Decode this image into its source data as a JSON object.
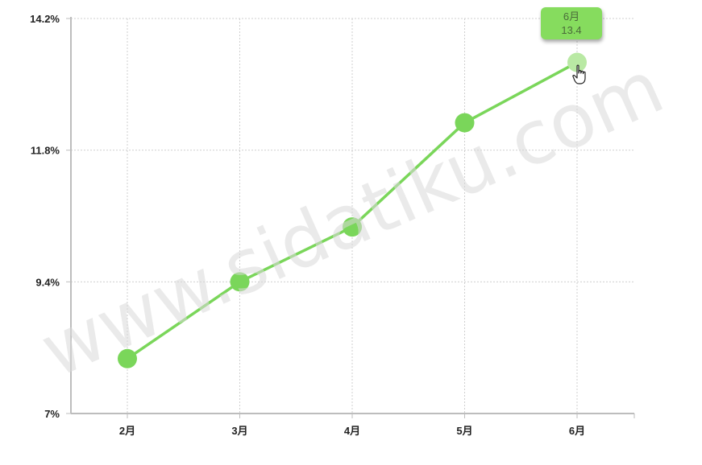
{
  "chart_data": {
    "type": "line",
    "categories": [
      "2月",
      "3月",
      "4月",
      "5月",
      "6月"
    ],
    "series": [
      {
        "values": [
          8.0,
          9.4,
          10.4,
          12.3,
          13.4
        ]
      }
    ],
    "yticks": [
      "14.2%",
      "11.8%",
      "9.4%",
      "7%"
    ],
    "ytick_values": [
      14.2,
      11.8,
      9.4,
      7.0
    ],
    "ylim": [
      7.0,
      14.2
    ],
    "grid": true,
    "line_color": "#7ad65a",
    "point_color": "#7ad65a",
    "hover_point_color": "#b9e9a4"
  },
  "tooltip": {
    "category": "6月",
    "value": "13.4"
  },
  "watermark": "www.sidatiku.com",
  "cursor_icon": "hand-pointer-icon"
}
